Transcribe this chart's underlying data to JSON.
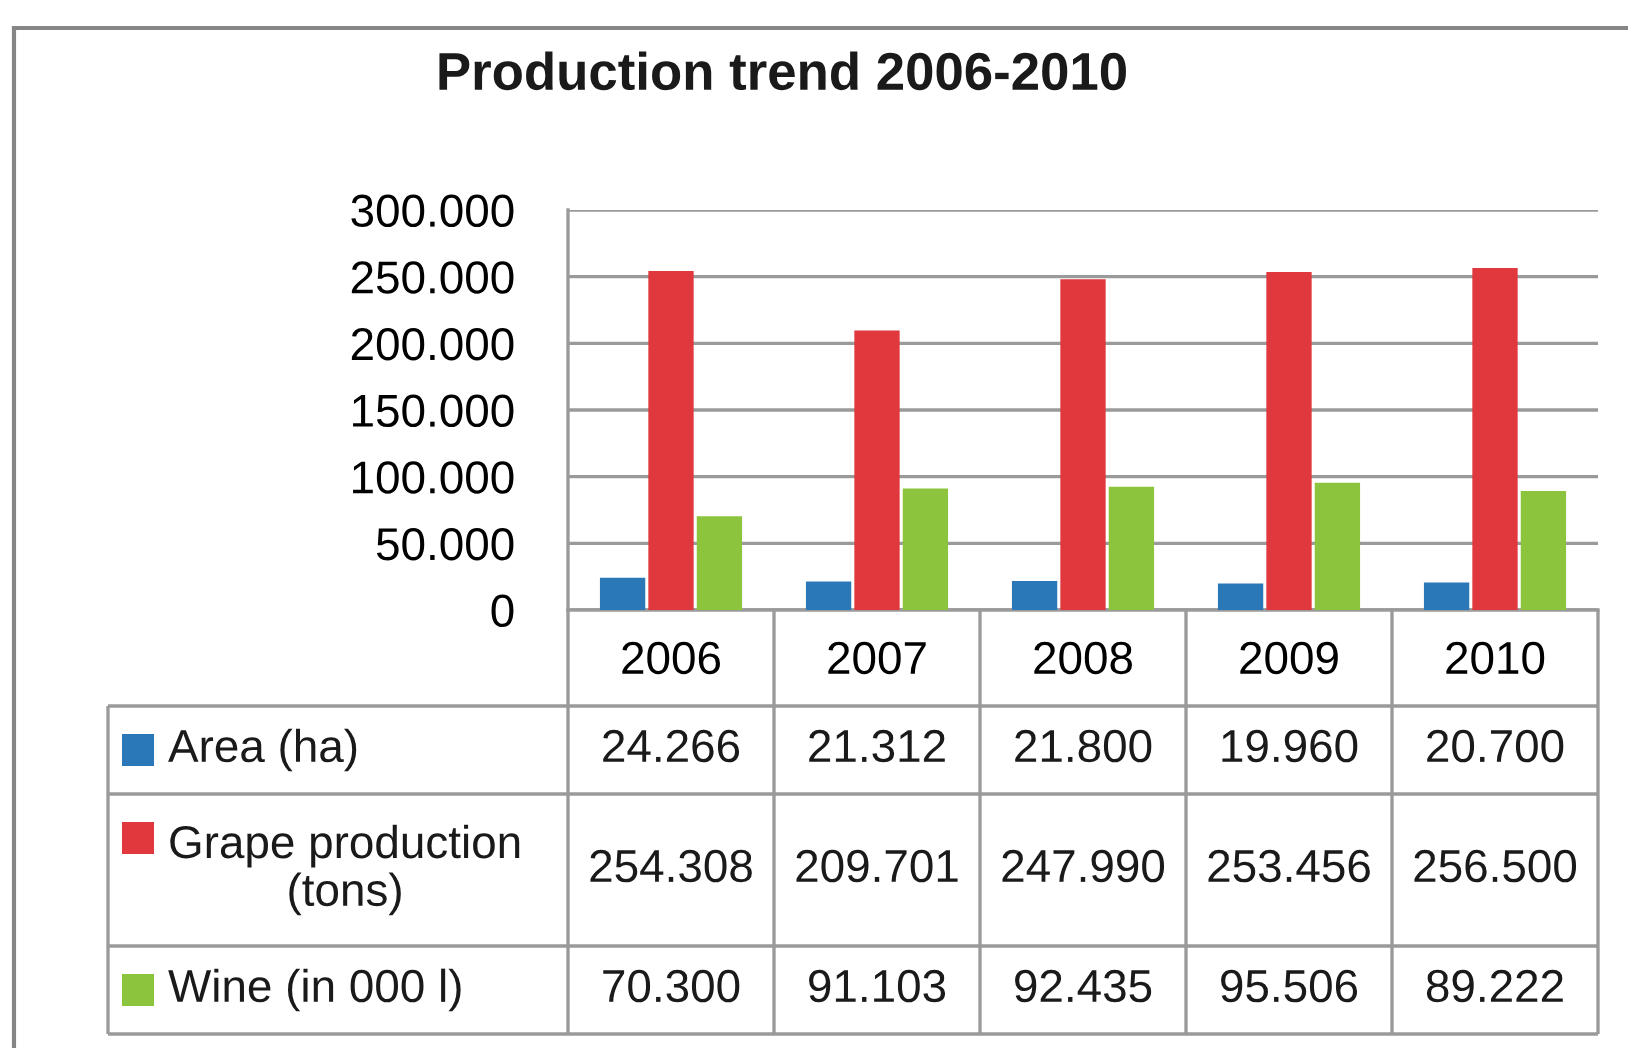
{
  "chart_data": {
    "type": "bar",
    "title": "Production trend 2006-2010",
    "categories": [
      "2006",
      "2007",
      "2008",
      "2009",
      "2010"
    ],
    "series": [
      {
        "name": "Area (ha)",
        "color": "#2a78b8",
        "values": [
          24266,
          21312,
          21800,
          19960,
          20700
        ],
        "value_labels": [
          "24.266",
          "21.312",
          "21.800",
          "19.960",
          "20.700"
        ]
      },
      {
        "name": "Grape production\n(tons)",
        "color": "#e0383c",
        "values": [
          254308,
          209701,
          247990,
          253456,
          256500
        ],
        "value_labels": [
          "254.308",
          "209.701",
          "247.990",
          "253.456",
          "256.500"
        ]
      },
      {
        "name": "Wine (in 000 l)",
        "color": "#8cc43e",
        "values": [
          70300,
          91103,
          92435,
          95506,
          89222
        ],
        "value_labels": [
          "70.300",
          "91.103",
          "92.435",
          "95.506",
          "89.222"
        ]
      }
    ],
    "ylim": [
      0,
      300000
    ],
    "yticks": [
      0,
      {
        "value": 50000,
        "label": "50.000"
      },
      {
        "value": 100000,
        "label": "100.000"
      },
      {
        "value": 150000,
        "label": "150.000"
      },
      {
        "value": 200000,
        "label": "200.000"
      },
      {
        "value": 250000,
        "label": "250.000"
      },
      {
        "value": 300000,
        "label": "300.000"
      }
    ],
    "grid": "y",
    "legend": "bottom left"
  }
}
